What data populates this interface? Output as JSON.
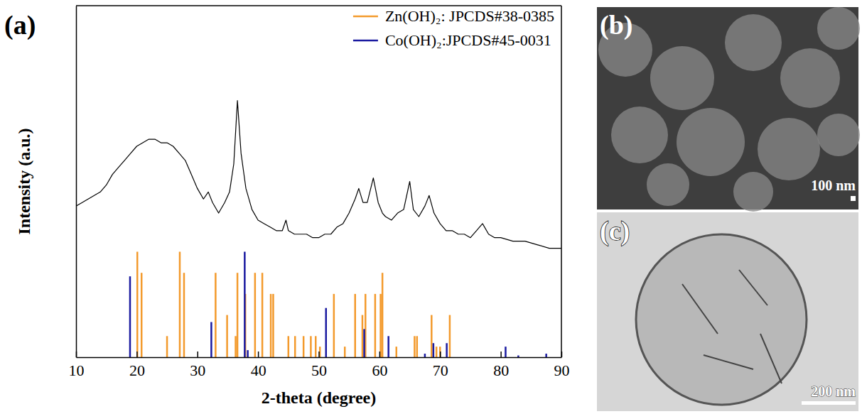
{
  "chart_data": {
    "type": "line",
    "x_label": "2-theta (degree)",
    "y_label": "Intensity (a.u.)",
    "xlim": [
      10,
      90
    ],
    "xticks": [
      10,
      20,
      30,
      40,
      50,
      60,
      70,
      80,
      90
    ],
    "ylim": [
      0,
      100
    ],
    "tick_labels": "x",
    "legend": "upper right",
    "series": [
      {
        "type": "line",
        "color": "#000000",
        "x": [
          10,
          11,
          12,
          13,
          14,
          15,
          16,
          17,
          18,
          19,
          20,
          21,
          22,
          23,
          24,
          25,
          26,
          27,
          28,
          29,
          30,
          31,
          31.8,
          32.5,
          33.5,
          34.5,
          35.3,
          36,
          36.6,
          37.2,
          38,
          39,
          40,
          41,
          42,
          43,
          44,
          44.6,
          45,
          46,
          47,
          48,
          49,
          50,
          51,
          52,
          53,
          54,
          55,
          56,
          56.6,
          57.3,
          58,
          59,
          59.8,
          60.5,
          61,
          62,
          63,
          64,
          65,
          65.6,
          66.5,
          67.5,
          68.2,
          69,
          70,
          71,
          72,
          73,
          74,
          75,
          76,
          77,
          78,
          79,
          80,
          82,
          84,
          86,
          88,
          90
        ],
        "values": [
          43,
          44,
          45,
          46,
          47,
          49,
          52,
          54,
          56,
          58,
          60,
          61,
          62,
          62,
          61,
          61,
          60,
          58,
          56,
          52,
          48,
          45,
          47,
          44,
          41,
          44,
          47,
          55,
          73,
          58,
          48,
          42,
          39,
          38,
          37,
          36,
          36,
          39,
          36,
          35,
          35,
          35,
          34,
          34,
          35,
          35,
          37,
          38,
          41,
          45,
          48,
          44,
          44,
          51,
          44,
          41,
          40,
          39,
          41,
          42,
          50,
          42,
          40,
          43,
          46,
          41,
          38,
          36,
          36,
          35,
          35,
          34,
          36,
          38,
          35,
          34,
          34,
          33,
          33,
          32,
          31,
          31
        ]
      },
      {
        "name": "Zn(OH)₂: JPCDS#38-0385",
        "type": "stem",
        "color": "#f39a2c",
        "x": [
          20.1,
          20.8,
          25.0,
          27.1,
          27.8,
          33.0,
          34.9,
          36.3,
          36.6,
          37.9,
          39.5,
          40.7,
          42.1,
          42.5,
          45.0,
          46.1,
          47.5,
          48.7,
          49.5,
          50.2,
          52.5,
          54.3,
          56.0,
          57.2,
          57.7,
          59.3,
          60.2,
          60.5,
          62.8,
          65.8,
          66.2,
          68.6,
          69.4,
          70.0,
          71.6
        ],
        "values": [
          30,
          24,
          6,
          30,
          24,
          24,
          12,
          6,
          24,
          18,
          24,
          24,
          18,
          18,
          6,
          6,
          6,
          6,
          6,
          3,
          18,
          3,
          18,
          12,
          18,
          18,
          18,
          24,
          3,
          6,
          6,
          12,
          3,
          3,
          12
        ]
      },
      {
        "name": "Co(OH)₂:JPCDS#45-0031",
        "type": "stem",
        "color": "#1a1aa0",
        "x": [
          18.9,
          32.3,
          37.8,
          38.3,
          51.2,
          57.5,
          61.5,
          67.5,
          68.9,
          71.1,
          80.8,
          82.9,
          87.5
        ],
        "values": [
          23,
          10,
          30,
          2,
          14,
          8,
          6,
          1,
          4,
          4,
          3,
          0.5,
          1
        ]
      }
    ]
  },
  "panels": [
    {
      "label": "(a)"
    },
    {
      "label": "(b)",
      "scale_bar": "100 nm"
    },
    {
      "label": "(c)",
      "scale_bar": "200 nm"
    }
  ]
}
